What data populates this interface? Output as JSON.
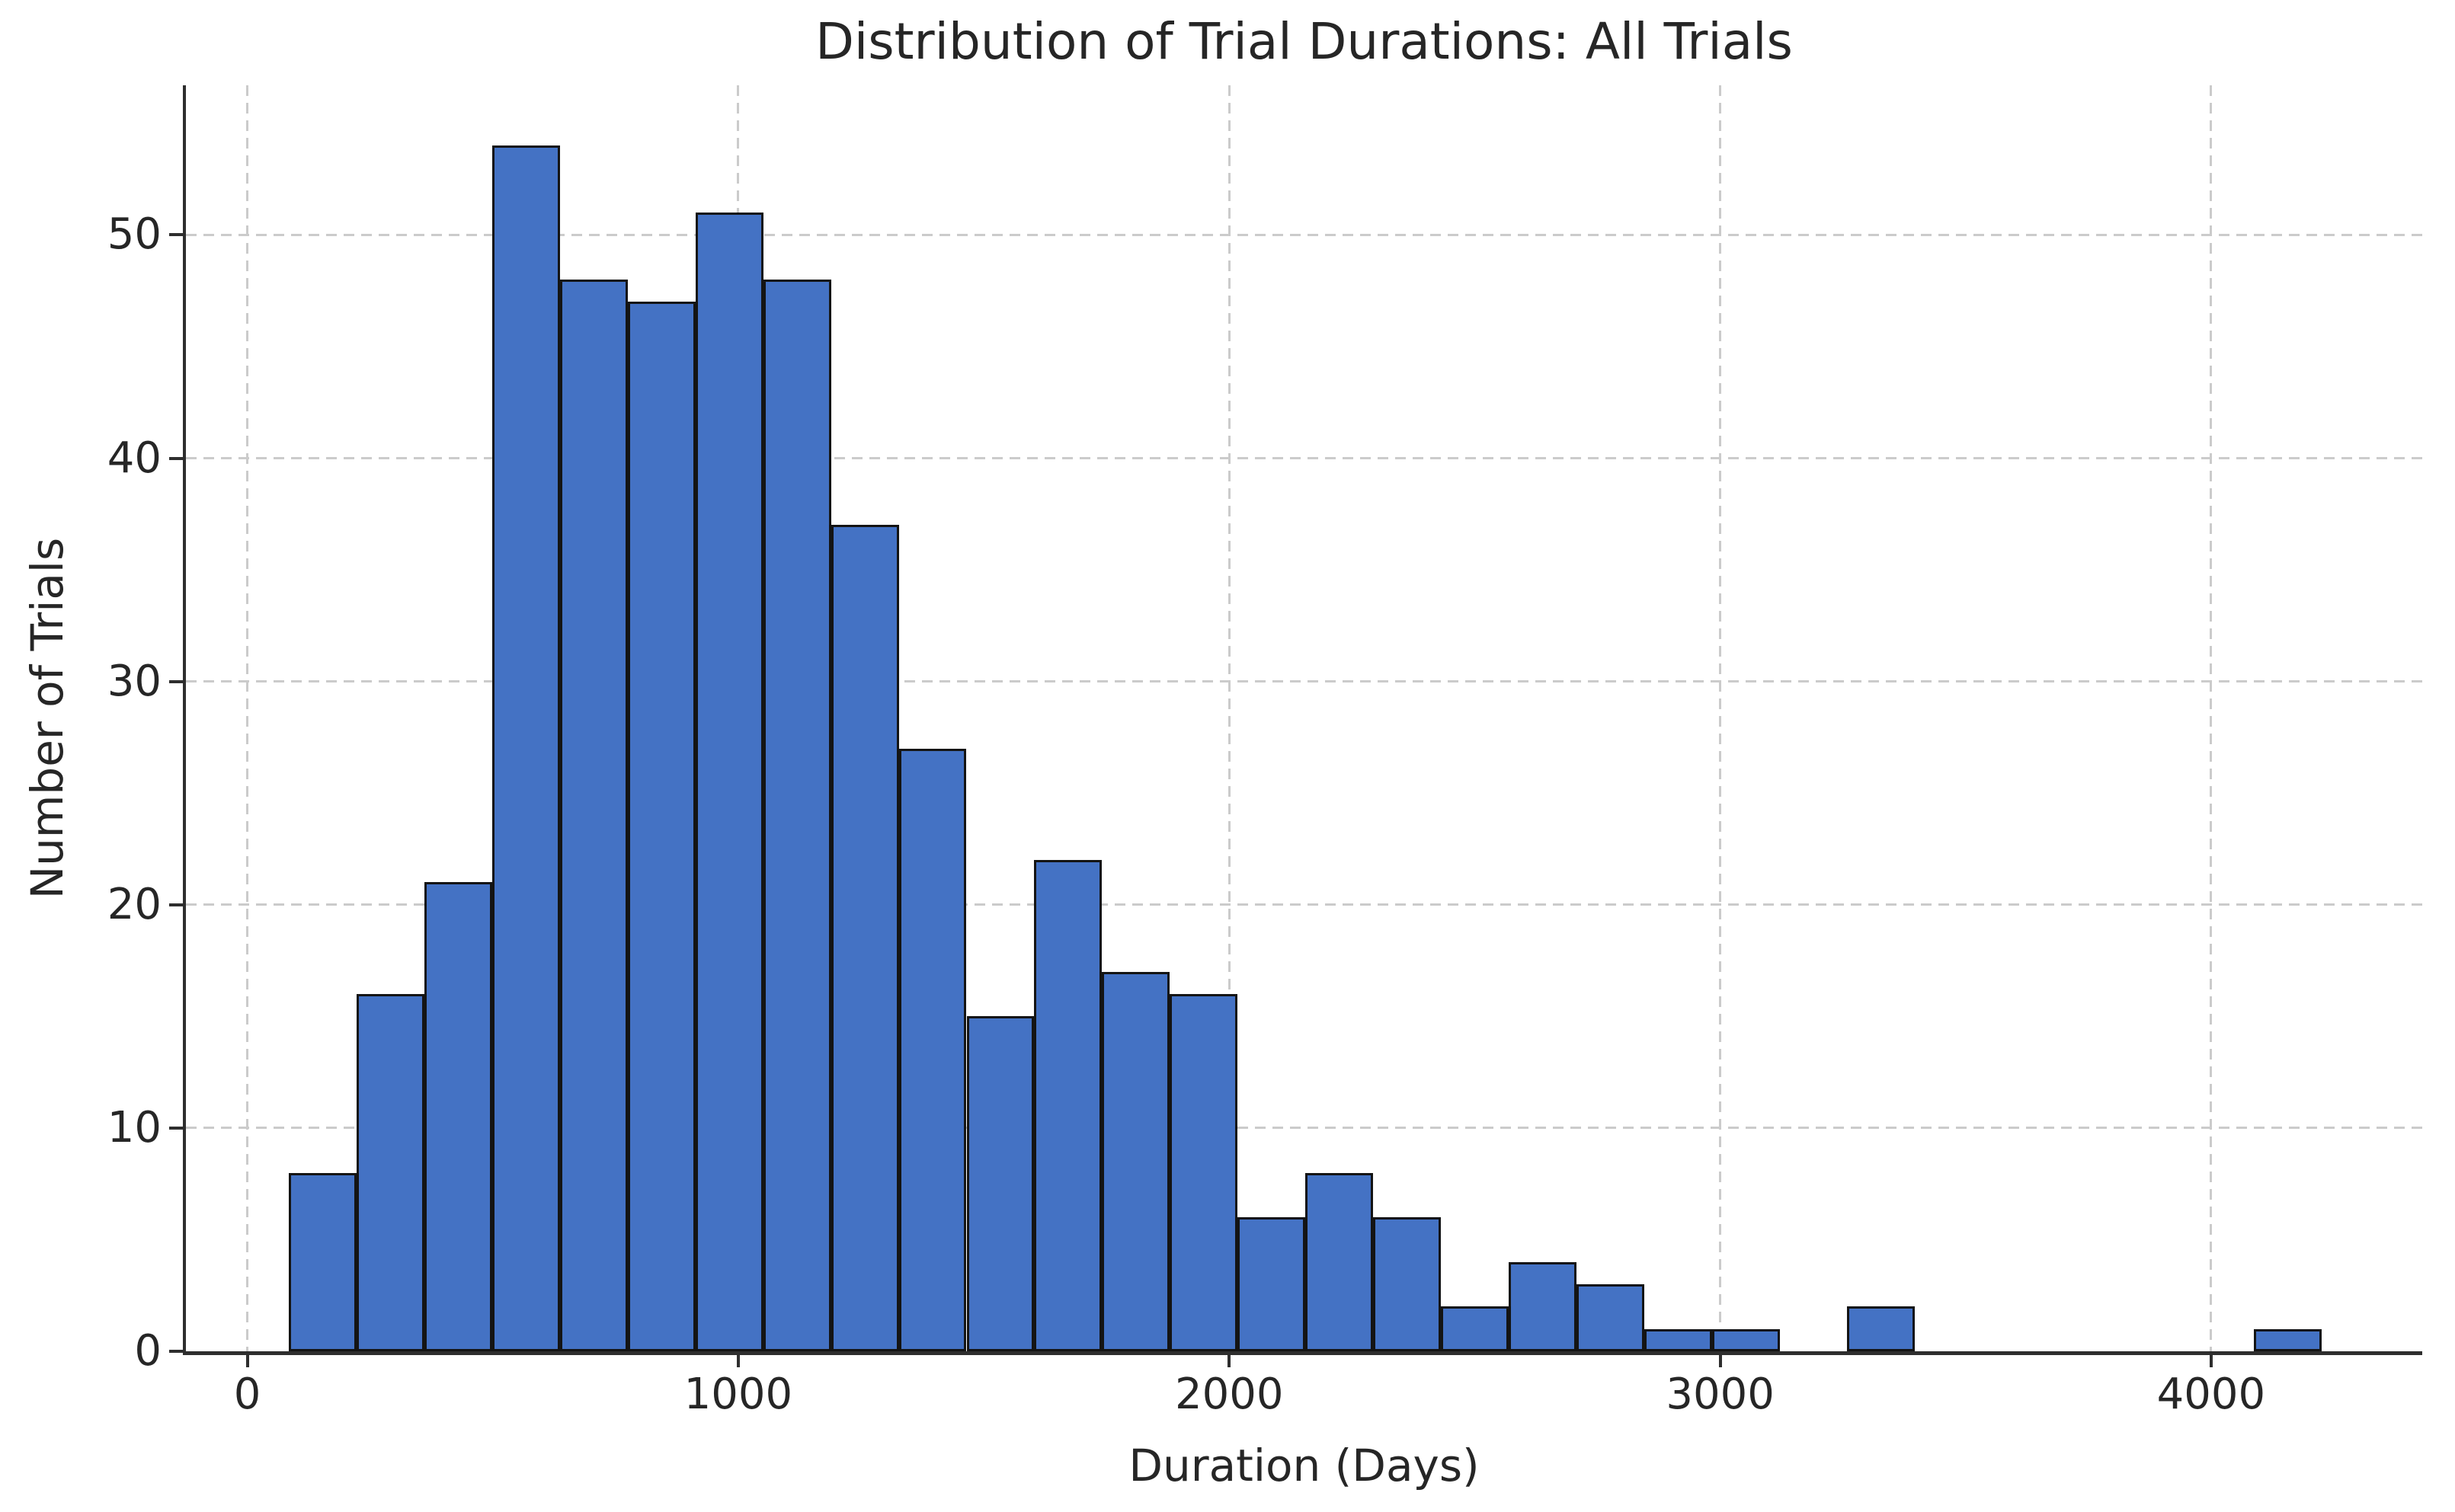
{
  "chart_data": {
    "type": "bar",
    "subtype": "histogram",
    "title": "Distribution of Trial Durations: All Trials",
    "xlabel": "Duration (Days)",
    "ylabel": "Number of Trials",
    "x_ticks": [
      0,
      1000,
      2000,
      3000,
      4000
    ],
    "y_ticks": [
      0,
      10,
      20,
      30,
      40,
      50
    ],
    "xlim": [
      -125,
      4430
    ],
    "ylim": [
      0,
      56.7
    ],
    "bin_start": 85,
    "bin_width": 138,
    "bin_count": 30,
    "values": [
      8,
      16,
      21,
      54,
      48,
      47,
      51,
      48,
      37,
      27,
      15,
      22,
      17,
      16,
      6,
      8,
      6,
      2,
      4,
      3,
      1,
      1,
      0,
      2,
      0,
      0,
      0,
      0,
      0,
      1
    ],
    "bar_color": "#4472C4",
    "bar_edge_color": "#141414",
    "grid": true,
    "grid_style": "dashed",
    "grid_color": "#cbcbcb",
    "legend": "none"
  }
}
